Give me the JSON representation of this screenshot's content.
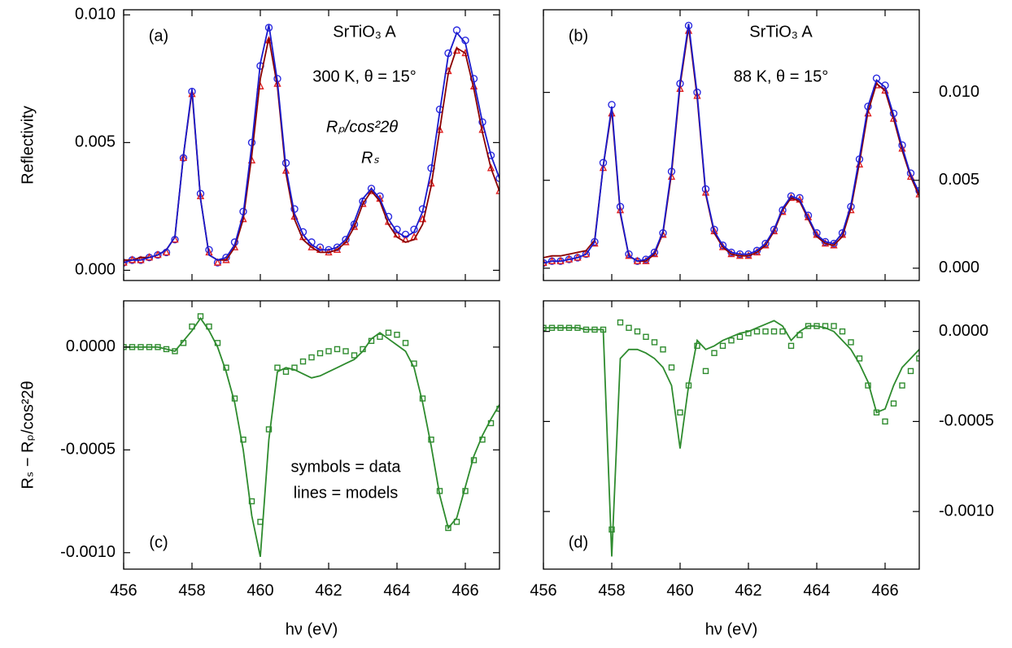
{
  "chart_data": [
    {
      "type": "line",
      "label": "(a)",
      "ylabel": "Reflectivity",
      "yaxis_side": "left",
      "annotations": [
        "SrTiO₃ A",
        "300 K, θ = 15°"
      ],
      "x": [
        456,
        456.25,
        456.5,
        456.75,
        457,
        457.25,
        457.5,
        457.75,
        458,
        458.25,
        458.5,
        458.75,
        459,
        459.25,
        459.5,
        459.75,
        460,
        460.25,
        460.5,
        460.75,
        461,
        461.25,
        461.5,
        461.75,
        462,
        462.25,
        462.5,
        462.75,
        463,
        463.25,
        463.5,
        463.75,
        464,
        464.25,
        464.5,
        464.75,
        465,
        465.25,
        465.5,
        465.75,
        466,
        466.25,
        466.5,
        466.75,
        467
      ],
      "xlim": [
        456,
        467
      ],
      "xticks": [
        456,
        458,
        460,
        462,
        464,
        466
      ],
      "ylim": [
        -0.0004,
        0.0102
      ],
      "yticks": [
        {
          "value": 0,
          "label": "0.000"
        },
        0.005,
        {
          "value": 0.01,
          "label": "0.010"
        }
      ],
      "series": [
        {
          "name": "Rₚ/cos²2θ",
          "color": "#2a2ae0",
          "style": "circle",
          "values": [
            0.0003,
            0.0004,
            0.0004,
            0.0005,
            0.0006,
            0.0007,
            0.0012,
            0.0044,
            0.007,
            0.003,
            0.0008,
            0.0003,
            0.0005,
            0.0011,
            0.0023,
            0.005,
            0.008,
            0.0095,
            0.0075,
            0.0042,
            0.0024,
            0.0015,
            0.0011,
            0.0009,
            0.0008,
            0.0009,
            0.0012,
            0.0018,
            0.0027,
            0.0032,
            0.0029,
            0.0021,
            0.0016,
            0.0014,
            0.0016,
            0.0024,
            0.004,
            0.0063,
            0.0085,
            0.0094,
            0.009,
            0.0075,
            0.0058,
            0.0045,
            0.0036
          ]
        },
        {
          "name": "Rₛ",
          "color": "#e02020",
          "style": "triangle",
          "values": [
            0.0003,
            0.0004,
            0.0004,
            0.0005,
            0.0006,
            0.0007,
            0.0012,
            0.0044,
            0.0069,
            0.0029,
            0.0007,
            0.0003,
            0.0004,
            0.0009,
            0.002,
            0.0043,
            0.0072,
            0.009,
            0.0073,
            0.0039,
            0.0021,
            0.0013,
            0.0009,
            0.0008,
            0.0007,
            0.0008,
            0.0011,
            0.0017,
            0.0026,
            0.0031,
            0.0028,
            0.0019,
            0.0014,
            0.0012,
            0.0013,
            0.002,
            0.0034,
            0.0055,
            0.0078,
            0.0086,
            0.0085,
            0.0072,
            0.0055,
            0.004,
            0.0031
          ]
        },
        {
          "color": "#8b0000",
          "style": "line",
          "values": [
            0.0004,
            0.0004,
            0.0005,
            0.0005,
            0.0006,
            0.0008,
            0.0013,
            0.0045,
            0.007,
            0.0028,
            0.0006,
            0.0004,
            0.0004,
            0.0009,
            0.002,
            0.0045,
            0.0075,
            0.0091,
            0.0072,
            0.0038,
            0.002,
            0.0012,
            0.0009,
            0.0007,
            0.0007,
            0.0008,
            0.0011,
            0.0017,
            0.0026,
            0.0031,
            0.0027,
            0.0018,
            0.0013,
            0.0011,
            0.0012,
            0.0018,
            0.0033,
            0.0055,
            0.0077,
            0.0087,
            0.0085,
            0.0071,
            0.0054,
            0.004,
            0.0031
          ]
        },
        {
          "color": "#1a1acc",
          "style": "line",
          "values": [
            0.0003,
            0.0004,
            0.0004,
            0.0005,
            0.0006,
            0.0008,
            0.0013,
            0.0045,
            0.0071,
            0.0028,
            0.0006,
            0.0004,
            0.0005,
            0.001,
            0.0022,
            0.0049,
            0.0081,
            0.0096,
            0.0074,
            0.004,
            0.0022,
            0.0014,
            0.001,
            0.0008,
            0.0008,
            0.0009,
            0.0012,
            0.0019,
            0.0028,
            0.0032,
            0.0028,
            0.002,
            0.0015,
            0.0013,
            0.0015,
            0.0023,
            0.0039,
            0.0062,
            0.0084,
            0.0093,
            0.0089,
            0.0074,
            0.0058,
            0.0045,
            0.0036
          ]
        }
      ]
    },
    {
      "type": "line",
      "label": "(b)",
      "yaxis_side": "right",
      "annotations": [
        "SrTiO₃ A",
        "88 K, θ = 15°"
      ],
      "x": [
        456,
        456.25,
        456.5,
        456.75,
        457,
        457.25,
        457.5,
        457.75,
        458,
        458.25,
        458.5,
        458.75,
        459,
        459.25,
        459.5,
        459.75,
        460,
        460.25,
        460.5,
        460.75,
        461,
        461.25,
        461.5,
        461.75,
        462,
        462.25,
        462.5,
        462.75,
        463,
        463.25,
        463.5,
        463.75,
        464,
        464.25,
        464.5,
        464.75,
        465,
        465.25,
        465.5,
        465.75,
        466,
        466.25,
        466.5,
        466.75,
        467
      ],
      "xlim": [
        456,
        467
      ],
      "xticks": [
        456,
        458,
        460,
        462,
        464,
        466
      ],
      "ylim": [
        -0.0007,
        0.0147
      ],
      "yticks": [
        {
          "value": 0,
          "label": "0.000"
        },
        0.005,
        {
          "value": 0.01,
          "label": "0.010"
        }
      ],
      "series": [
        {
          "color": "#2a2ae0",
          "style": "circle",
          "values": [
            0.0003,
            0.0004,
            0.0004,
            0.0005,
            0.0006,
            0.0008,
            0.0015,
            0.006,
            0.0093,
            0.0035,
            0.0008,
            0.0004,
            0.0005,
            0.0009,
            0.002,
            0.0055,
            0.0105,
            0.0138,
            0.01,
            0.0045,
            0.0022,
            0.0013,
            0.0009,
            0.0008,
            0.0008,
            0.001,
            0.0014,
            0.0022,
            0.0033,
            0.0041,
            0.004,
            0.003,
            0.002,
            0.0015,
            0.0014,
            0.002,
            0.0035,
            0.0062,
            0.0092,
            0.0108,
            0.0104,
            0.0088,
            0.007,
            0.0054,
            0.0044
          ]
        },
        {
          "color": "#e02020",
          "style": "triangle",
          "values": [
            0.0003,
            0.0004,
            0.0004,
            0.0005,
            0.0006,
            0.0008,
            0.0014,
            0.0057,
            0.0088,
            0.0033,
            0.0007,
            0.0004,
            0.0004,
            0.0008,
            0.0019,
            0.0052,
            0.0102,
            0.0135,
            0.0098,
            0.0043,
            0.0021,
            0.0012,
            0.0008,
            0.0007,
            0.0007,
            0.0009,
            0.0013,
            0.0021,
            0.0032,
            0.004,
            0.0039,
            0.0029,
            0.0019,
            0.0014,
            0.0013,
            0.0019,
            0.0033,
            0.0059,
            0.0088,
            0.0104,
            0.0101,
            0.0085,
            0.0068,
            0.0052,
            0.0042
          ]
        },
        {
          "color": "#8b0000",
          "style": "line",
          "values": [
            0.0006,
            0.0007,
            0.0007,
            0.0008,
            0.0009,
            0.001,
            0.0016,
            0.0058,
            0.009,
            0.0031,
            0.0007,
            0.0004,
            0.0004,
            0.0008,
            0.002,
            0.0054,
            0.0104,
            0.0137,
            0.0097,
            0.0042,
            0.002,
            0.0012,
            0.0008,
            0.0007,
            0.0007,
            0.0009,
            0.0013,
            0.0021,
            0.0033,
            0.004,
            0.0038,
            0.0028,
            0.0018,
            0.0014,
            0.0013,
            0.0018,
            0.0034,
            0.006,
            0.0089,
            0.0105,
            0.0101,
            0.0085,
            0.0067,
            0.0052,
            0.0041
          ]
        },
        {
          "color": "#1a1acc",
          "style": "line",
          "values": [
            0.0003,
            0.0004,
            0.0004,
            0.0005,
            0.0006,
            0.0008,
            0.0015,
            0.0058,
            0.0092,
            0.0032,
            0.0007,
            0.0004,
            0.0005,
            0.0009,
            0.0021,
            0.0056,
            0.0106,
            0.0139,
            0.0099,
            0.0043,
            0.0021,
            0.0013,
            0.0009,
            0.0008,
            0.0008,
            0.001,
            0.0014,
            0.0022,
            0.0034,
            0.0041,
            0.0039,
            0.0029,
            0.0019,
            0.0015,
            0.0014,
            0.002,
            0.0036,
            0.0063,
            0.0092,
            0.0107,
            0.0103,
            0.0087,
            0.0069,
            0.0053,
            0.0043
          ]
        }
      ]
    },
    {
      "type": "line",
      "label": "(c)",
      "ylabel": "Rₛ − Rₚ/cos²2θ",
      "xlabel": "hν (eV)",
      "yaxis_side": "left",
      "annotations": [
        "symbols = data",
        "lines = models"
      ],
      "x": [
        456,
        456.25,
        456.5,
        456.75,
        457,
        457.25,
        457.5,
        457.75,
        458,
        458.25,
        458.5,
        458.75,
        459,
        459.25,
        459.5,
        459.75,
        460,
        460.25,
        460.5,
        460.75,
        461,
        461.25,
        461.5,
        461.75,
        462,
        462.25,
        462.5,
        462.75,
        463,
        463.25,
        463.5,
        463.75,
        464,
        464.25,
        464.5,
        464.75,
        465,
        465.25,
        465.5,
        465.75,
        466,
        466.25,
        466.5,
        466.75,
        467
      ],
      "xlim": [
        456,
        467
      ],
      "xticks": [
        456,
        458,
        460,
        462,
        464,
        466
      ],
      "ylim": [
        -0.00108,
        0.000225
      ],
      "yticks": [
        {
          "value": -0.001,
          "label": "-0.0010"
        },
        {
          "value": -0.0005,
          "label": "-0.0005"
        },
        {
          "value": 0,
          "label": "0.0000"
        }
      ],
      "series": [
        {
          "color": "#2e8b2e",
          "style": "square",
          "values": [
            0,
            0,
            0,
            0,
            0,
            -1e-05,
            -2e-05,
            2e-05,
            0.0001,
            0.00015,
            0.0001,
            2e-05,
            -0.0001,
            -0.00025,
            -0.00045,
            -0.00075,
            -0.00085,
            -0.0004,
            -0.0001,
            -0.00012,
            -0.0001,
            -7e-05,
            -5e-05,
            -3e-05,
            -2e-05,
            -1e-05,
            -2e-05,
            -4e-05,
            -1e-05,
            3e-05,
            5e-05,
            7e-05,
            6e-05,
            2e-05,
            -8e-05,
            -0.00025,
            -0.00045,
            -0.0007,
            -0.00088,
            -0.00085,
            -0.0007,
            -0.00055,
            -0.00045,
            -0.00037,
            -0.0003
          ]
        },
        {
          "color": "#2e8b2e",
          "style": "line",
          "values": [
            0,
            0,
            0,
            0,
            0,
            -1e-05,
            -2e-05,
            3e-05,
            8e-05,
            0.00014,
            8e-05,
            0,
            -0.00012,
            -0.00027,
            -0.0005,
            -0.00082,
            -0.00102,
            -0.00045,
            -0.00012,
            -0.0001,
            -0.00011,
            -0.00013,
            -0.00015,
            -0.00014,
            -0.00012,
            -0.0001,
            -8e-05,
            -6e-05,
            -2e-05,
            4e-05,
            7e-05,
            4e-05,
            1e-05,
            -2e-05,
            -0.0001,
            -0.00027,
            -0.00048,
            -0.00072,
            -0.00088,
            -0.00083,
            -0.00068,
            -0.00053,
            -0.00043,
            -0.00035,
            -0.00028
          ]
        }
      ]
    },
    {
      "type": "line",
      "label": "(d)",
      "xlabel": "hν (eV)",
      "yaxis_side": "right",
      "x": [
        456,
        456.25,
        456.5,
        456.75,
        457,
        457.25,
        457.5,
        457.75,
        458,
        458.25,
        458.5,
        458.75,
        459,
        459.25,
        459.5,
        459.75,
        460,
        460.25,
        460.5,
        460.75,
        461,
        461.25,
        461.5,
        461.75,
        462,
        462.25,
        462.5,
        462.75,
        463,
        463.25,
        463.5,
        463.75,
        464,
        464.25,
        464.5,
        464.75,
        465,
        465.25,
        465.5,
        465.75,
        466,
        466.25,
        466.5,
        466.75,
        467
      ],
      "xlim": [
        456,
        467
      ],
      "xticks": [
        456,
        458,
        460,
        462,
        464,
        466
      ],
      "ylim": [
        -0.00132,
        0.00017
      ],
      "yticks": [
        {
          "value": -0.001,
          "label": "-0.0010"
        },
        {
          "value": -0.0005,
          "label": "-0.0005"
        },
        {
          "value": 0,
          "label": "0.0000"
        }
      ],
      "series": [
        {
          "color": "#2e8b2e",
          "style": "square",
          "values": [
            2e-05,
            2e-05,
            2e-05,
            2e-05,
            2e-05,
            1e-05,
            1e-05,
            1e-05,
            -0.0011,
            5e-05,
            2e-05,
            0,
            -3e-05,
            -6e-05,
            -0.0001,
            -0.0002,
            -0.00045,
            -0.0003,
            -8e-05,
            -0.00022,
            -0.00012,
            -8e-05,
            -5e-05,
            -3e-05,
            -1e-05,
            0,
            0,
            0,
            0,
            -8e-05,
            -2e-05,
            3e-05,
            3e-05,
            3e-05,
            3e-05,
            0,
            -6e-05,
            -0.00015,
            -0.0003,
            -0.00045,
            -0.0005,
            -0.0004,
            -0.0003,
            -0.00022,
            -0.00015
          ]
        },
        {
          "color": "#2e8b2e",
          "style": "line",
          "values": [
            2e-05,
            2e-05,
            2e-05,
            2e-05,
            2e-05,
            1e-05,
            1e-05,
            1e-05,
            -0.00125,
            -0.00015,
            -0.0001,
            -0.0001,
            -0.00012,
            -0.00015,
            -0.0002,
            -0.0003,
            -0.00065,
            -0.0003,
            -5e-05,
            -0.0001,
            -8e-05,
            -5e-05,
            -3e-05,
            -1e-05,
            0,
            2e-05,
            4e-05,
            6e-05,
            3e-05,
            -5e-05,
            0,
            3e-05,
            3e-05,
            2e-05,
            0,
            -5e-05,
            -0.0001,
            -0.00018,
            -0.00028,
            -0.00045,
            -0.00043,
            -0.0003,
            -0.0002,
            -0.00015,
            -0.0001
          ]
        }
      ]
    }
  ]
}
